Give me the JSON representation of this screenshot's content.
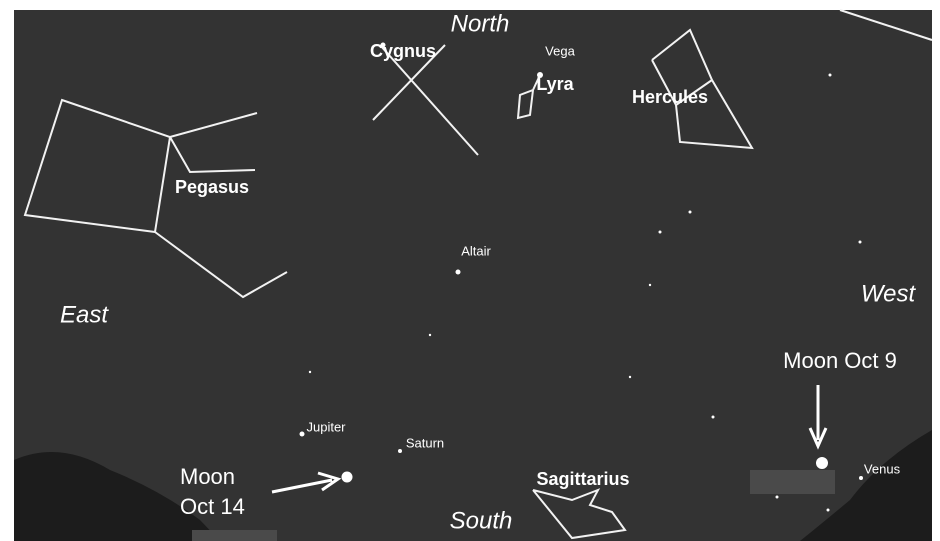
{
  "directions": {
    "north": "North",
    "south": "South",
    "east": "East",
    "west": "West"
  },
  "constellations": {
    "cygnus": "Cygnus",
    "lyra": "Lyra",
    "hercules": "Hercules",
    "pegasus": "Pegasus",
    "sagittarius": "Sagittarius"
  },
  "stars": {
    "vega": "Vega",
    "altair": "Altair"
  },
  "planets": {
    "jupiter": "Jupiter",
    "saturn": "Saturn",
    "venus": "Venus"
  },
  "moon_labels": {
    "oct_9": "Moon Oct 9",
    "oct_14": [
      "Moon",
      "Oct 14"
    ]
  }
}
